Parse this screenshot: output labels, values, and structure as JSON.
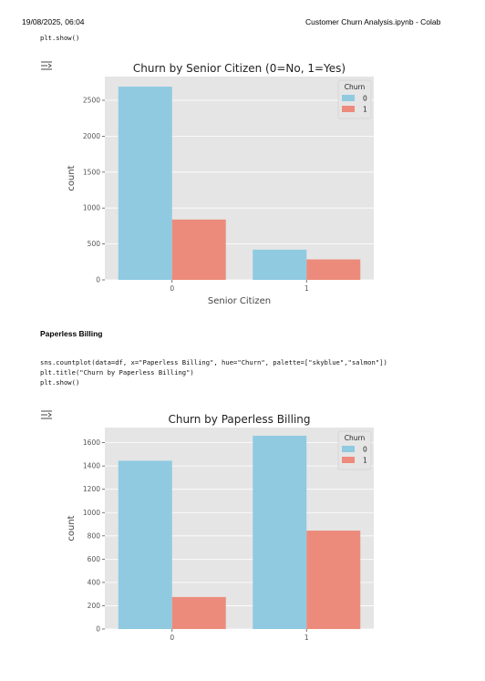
{
  "page": {
    "date": "19/08/2025, 06:04",
    "doc_title": "Customer Churn Analysis.ipynb - Colab"
  },
  "cells": {
    "code1": "plt.show()",
    "section_title": "Paperless Billing",
    "code2_line1": "sns.countplot(data=df, x=\"Paperless Billing\", hue=\"Churn\", palette=[\"skyblue\",\"salmon\"])",
    "code2_line2": "plt.title(\"Churn by Paperless Billing\")",
    "code2_line3": "plt.show()"
  },
  "colors": {
    "series0": "#8fcae1",
    "series1": "#ec8b7c",
    "plot_bg": "#e5e5e5",
    "grid": "#ffffff"
  },
  "chart_data": [
    {
      "type": "bar",
      "title": "Churn by Senior Citizen (0=No, 1=Yes)",
      "xlabel": "Senior Citizen",
      "ylabel": "count",
      "categories": [
        "0",
        "1"
      ],
      "legend_title": "Churn",
      "legend_position": "top-right",
      "series": [
        {
          "name": "0",
          "values": [
            2690,
            420
          ]
        },
        {
          "name": "1",
          "values": [
            840,
            285
          ]
        }
      ],
      "yticks": [
        0,
        500,
        1000,
        1500,
        2000,
        2500
      ],
      "ylim": [
        0,
        2830
      ],
      "grid": true
    },
    {
      "type": "bar",
      "title": "Churn by Paperless Billing",
      "xlabel": "",
      "ylabel": "count",
      "categories": [
        "0",
        "1"
      ],
      "legend_title": "Churn",
      "legend_position": "top-right",
      "series": [
        {
          "name": "0",
          "values": [
            1445,
            1660
          ]
        },
        {
          "name": "1",
          "values": [
            275,
            845
          ]
        }
      ],
      "yticks": [
        0,
        200,
        400,
        600,
        800,
        1000,
        1200,
        1400,
        1600
      ],
      "ylim": [
        0,
        1730
      ],
      "grid": true
    }
  ]
}
